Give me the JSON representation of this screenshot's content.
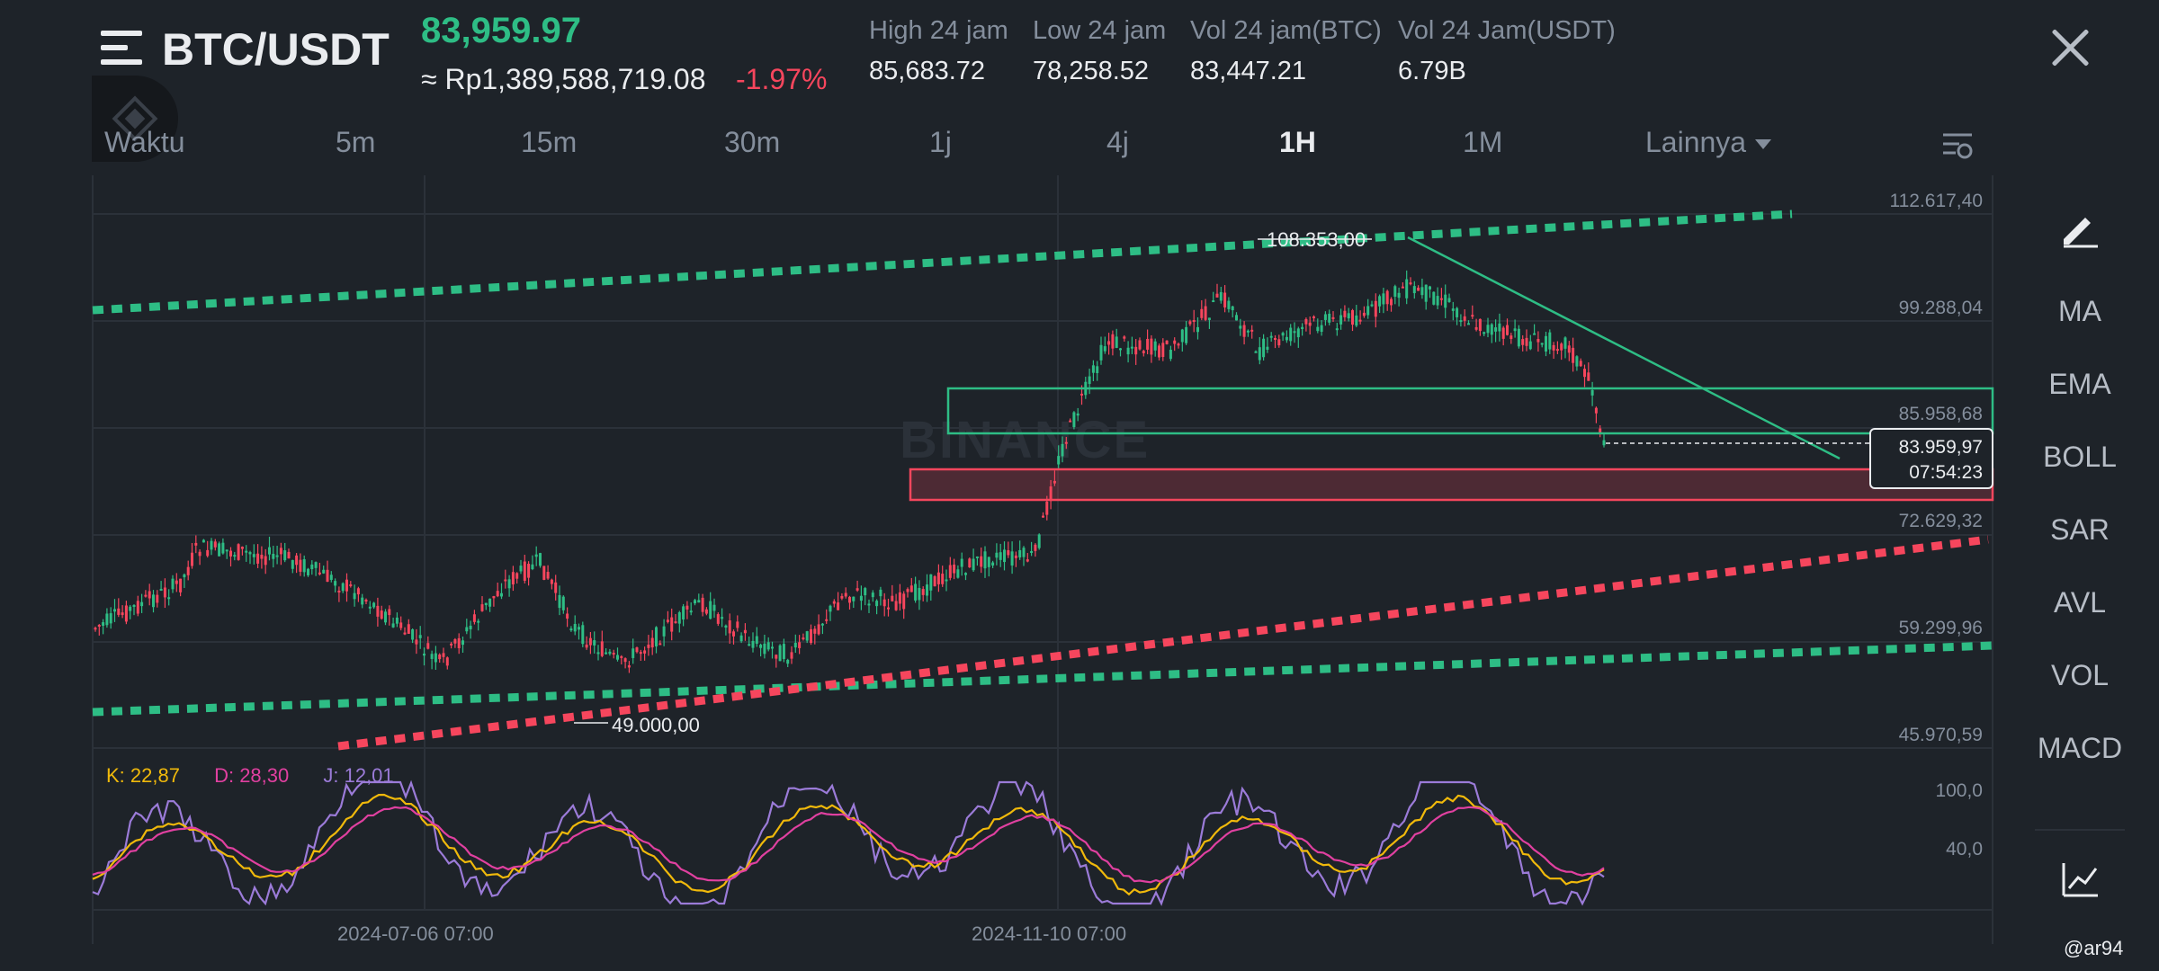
{
  "header": {
    "pair": "BTC/USDT",
    "last_price": "83,959.97",
    "fiat_price": "≈ Rp1,389,588,719.08",
    "change": "-1.97%",
    "stats": [
      {
        "label": "High 24 jam",
        "value": "85,683.72"
      },
      {
        "label": "Low 24 jam",
        "value": "78,258.52"
      },
      {
        "label": "Vol 24 jam(BTC)",
        "value": "83,447.21"
      },
      {
        "label": "Vol 24 Jam(USDT)",
        "value": "6.79B"
      }
    ]
  },
  "timeframes": [
    "Waktu",
    "5m",
    "15m",
    "30m",
    "1j",
    "4j",
    "1H",
    "1M"
  ],
  "active_timeframe": "1H",
  "more_label": "Lainnya",
  "indicators": [
    "MA",
    "EMA",
    "BOLL",
    "SAR",
    "AVL",
    "VOL",
    "MACD"
  ],
  "chart": {
    "y_labels": [
      "112.617,40",
      "99.288,04",
      "85.958,68",
      "72.629,32",
      "59.299,96",
      "45.970,59"
    ],
    "current_price": "83.959,97",
    "countdown": "07:54:23",
    "high_label": "108.353,00",
    "low_label": "49.000,00",
    "watermark": "BINANCE",
    "x_labels": [
      "2024-07-06 07:00",
      "2024-11-10 07:00"
    ]
  },
  "kdj": {
    "k": "K: 22,87",
    "d": "D: 28,30",
    "j": "J: 12,01",
    "y_labels": [
      "100,0",
      "40,0"
    ]
  },
  "credit": "@ar94",
  "colors": {
    "up": "#2ebd85",
    "down": "#f6465d",
    "bg": "#1e2329",
    "k": "#f0b90b",
    "d": "#e040a0",
    "j": "#9b7bd8"
  }
}
